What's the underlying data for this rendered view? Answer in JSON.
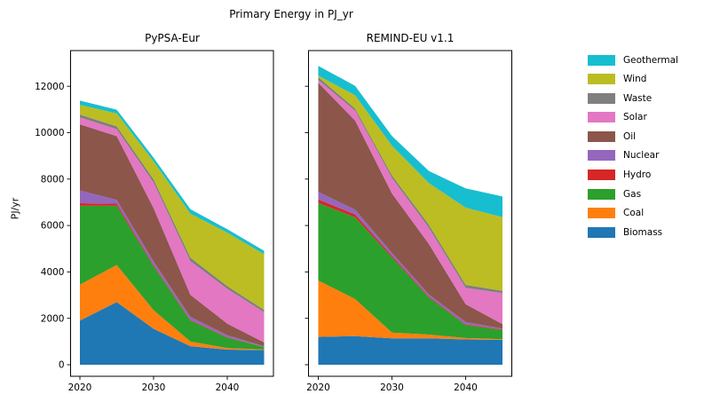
{
  "figure_title": "Primary Energy in PJ_yr",
  "y_axis_label": "PJ/yr",
  "legend": {
    "items": [
      {
        "label": "Geothermal",
        "color": "#17becf"
      },
      {
        "label": "Wind",
        "color": "#bcbd22"
      },
      {
        "label": "Waste",
        "color": "#7f7f7f"
      },
      {
        "label": "Solar",
        "color": "#e377c2"
      },
      {
        "label": "Oil",
        "color": "#8c564b"
      },
      {
        "label": "Nuclear",
        "color": "#9467bd"
      },
      {
        "label": "Hydro",
        "color": "#d62728"
      },
      {
        "label": "Gas",
        "color": "#2ca02c"
      },
      {
        "label": "Coal",
        "color": "#ff7f0e"
      },
      {
        "label": "Biomass",
        "color": "#1f77b4"
      }
    ]
  },
  "chart_data": [
    {
      "type": "area",
      "stacked": true,
      "title": "PyPSA-Eur",
      "x": [
        2020,
        2025,
        2030,
        2035,
        2040,
        2045
      ],
      "xticks": [
        2020,
        2030,
        2040
      ],
      "yticks": [
        0,
        2000,
        4000,
        6000,
        8000,
        10000,
        12000
      ],
      "ylim": [
        0,
        13400
      ],
      "show_ytick_labels": true,
      "series": [
        {
          "name": "Biomass",
          "color": "#1f77b4",
          "values": [
            1900,
            2700,
            1550,
            800,
            650,
            630
          ]
        },
        {
          "name": "Coal",
          "color": "#ff7f0e",
          "values": [
            1550,
            1600,
            800,
            200,
            70,
            30
          ]
        },
        {
          "name": "Gas",
          "color": "#2ca02c",
          "values": [
            3400,
            2550,
            1900,
            900,
            450,
            100
          ]
        },
        {
          "name": "Hydro",
          "color": "#d62728",
          "values": [
            110,
            90,
            50,
            30,
            20,
            10
          ]
        },
        {
          "name": "Nuclear",
          "color": "#9467bd",
          "values": [
            550,
            160,
            150,
            130,
            80,
            30
          ]
        },
        {
          "name": "Oil",
          "color": "#8c564b",
          "values": [
            2850,
            2750,
            2300,
            950,
            500,
            160
          ]
        },
        {
          "name": "Solar",
          "color": "#e377c2",
          "values": [
            300,
            300,
            1100,
            1450,
            1500,
            1300
          ]
        },
        {
          "name": "Waste",
          "color": "#7f7f7f",
          "values": [
            120,
            120,
            140,
            150,
            120,
            100
          ]
        },
        {
          "name": "Wind",
          "color": "#bcbd22",
          "values": [
            420,
            560,
            770,
            1900,
            2300,
            2400
          ]
        },
        {
          "name": "Geothermal",
          "color": "#17becf",
          "values": [
            180,
            160,
            160,
            190,
            150,
            150
          ]
        }
      ]
    },
    {
      "type": "area",
      "stacked": true,
      "title": "REMIND-EU v1.1",
      "x": [
        2020,
        2025,
        2030,
        2035,
        2040,
        2045
      ],
      "xticks": [
        2020,
        2030,
        2040
      ],
      "yticks": [
        0,
        2000,
        4000,
        6000,
        8000,
        10000,
        12000
      ],
      "ylim": [
        0,
        13400
      ],
      "show_ytick_labels": false,
      "series": [
        {
          "name": "Biomass",
          "color": "#1f77b4",
          "values": [
            1200,
            1230,
            1140,
            1140,
            1090,
            1070
          ]
        },
        {
          "name": "Coal",
          "color": "#ff7f0e",
          "values": [
            2430,
            1600,
            250,
            160,
            60,
            30
          ]
        },
        {
          "name": "Gas",
          "color": "#2ca02c",
          "values": [
            3340,
            3520,
            3240,
            1600,
            560,
            390
          ]
        },
        {
          "name": "Hydro",
          "color": "#d62728",
          "values": [
            160,
            130,
            70,
            40,
            30,
            30
          ]
        },
        {
          "name": "Nuclear",
          "color": "#9467bd",
          "values": [
            310,
            200,
            120,
            90,
            100,
            40
          ]
        },
        {
          "name": "Oil",
          "color": "#8c564b",
          "values": [
            4710,
            3840,
            2560,
            2180,
            770,
            190
          ]
        },
        {
          "name": "Solar",
          "color": "#e377c2",
          "values": [
            120,
            430,
            670,
            700,
            700,
            1340
          ]
        },
        {
          "name": "Waste",
          "color": "#7f7f7f",
          "values": [
            120,
            90,
            110,
            130,
            130,
            90
          ]
        },
        {
          "name": "Wind",
          "color": "#bcbd22",
          "values": [
            70,
            570,
            1280,
            1790,
            3330,
            3180
          ]
        },
        {
          "name": "Geothermal",
          "color": "#17becf",
          "values": [
            420,
            410,
            420,
            520,
            830,
            890
          ]
        }
      ]
    }
  ]
}
